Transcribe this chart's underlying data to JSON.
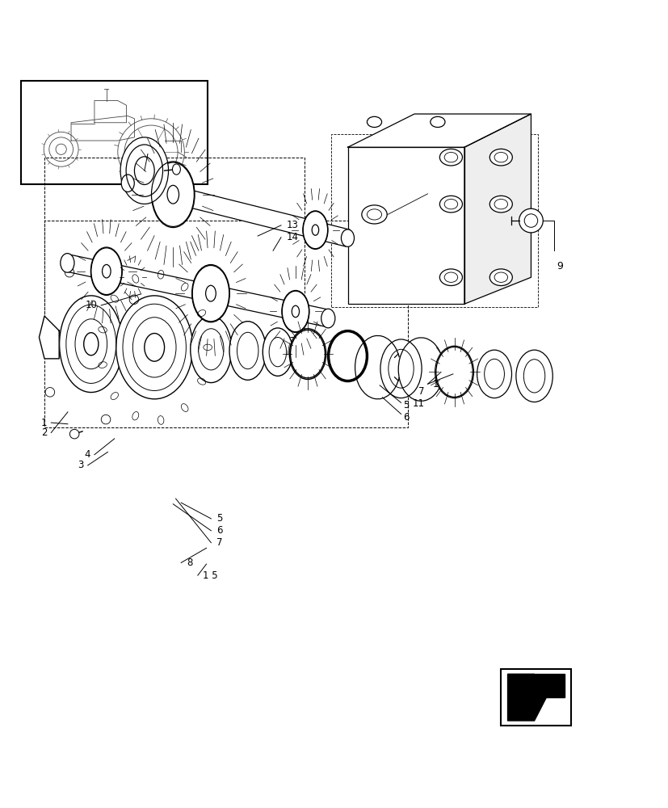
{
  "bg_color": "#ffffff",
  "line_color": "#000000",
  "fig_width": 8.28,
  "fig_height": 10.0
}
